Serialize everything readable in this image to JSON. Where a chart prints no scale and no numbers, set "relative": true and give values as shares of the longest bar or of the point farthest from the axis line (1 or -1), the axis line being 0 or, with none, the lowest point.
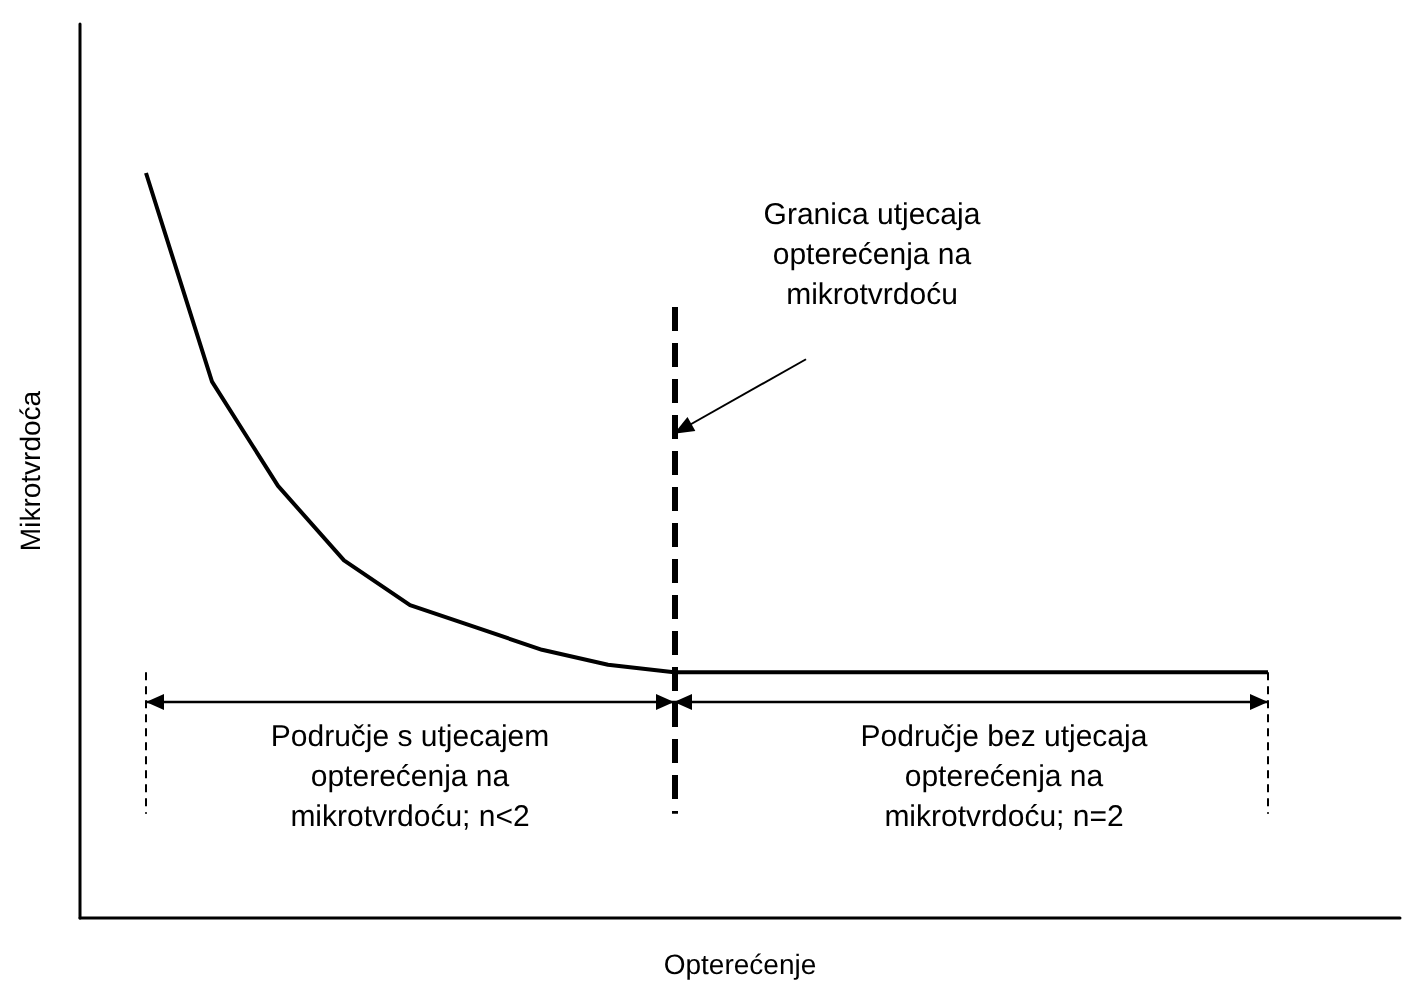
{
  "chart_data": {
    "type": "line",
    "relative": true,
    "xlabel": "Opterećenje",
    "ylabel": "Mikrotvrdoća",
    "color": "#000000",
    "marker": "none",
    "line_style": "solid",
    "grid": false,
    "categories": [
      null,
      null,
      null,
      null,
      null,
      null,
      null,
      null,
      null,
      null,
      null,
      null,
      null,
      null,
      null,
      null,
      null,
      null,
      null,
      null,
      null
    ],
    "values": [
      null,
      1,
      0.72,
      0.58,
      0.48,
      0.42,
      0.39,
      0.36,
      0.34,
      0.33,
      0.33,
      0.33,
      0.33,
      0.33,
      0.33,
      0.33,
      0.33,
      0.33,
      0.33,
      null,
      null
    ],
    "annotations": [
      "Područje s utjecajem\nopterećenja na\nmikrotvrdoću; n<2",
      "Područje bez utjecaja\nopterećenja na\nmikrotvrdoću; n=2",
      "Granica utjecaja\nopterećenja na\nmikrotvrdoću"
    ]
  }
}
